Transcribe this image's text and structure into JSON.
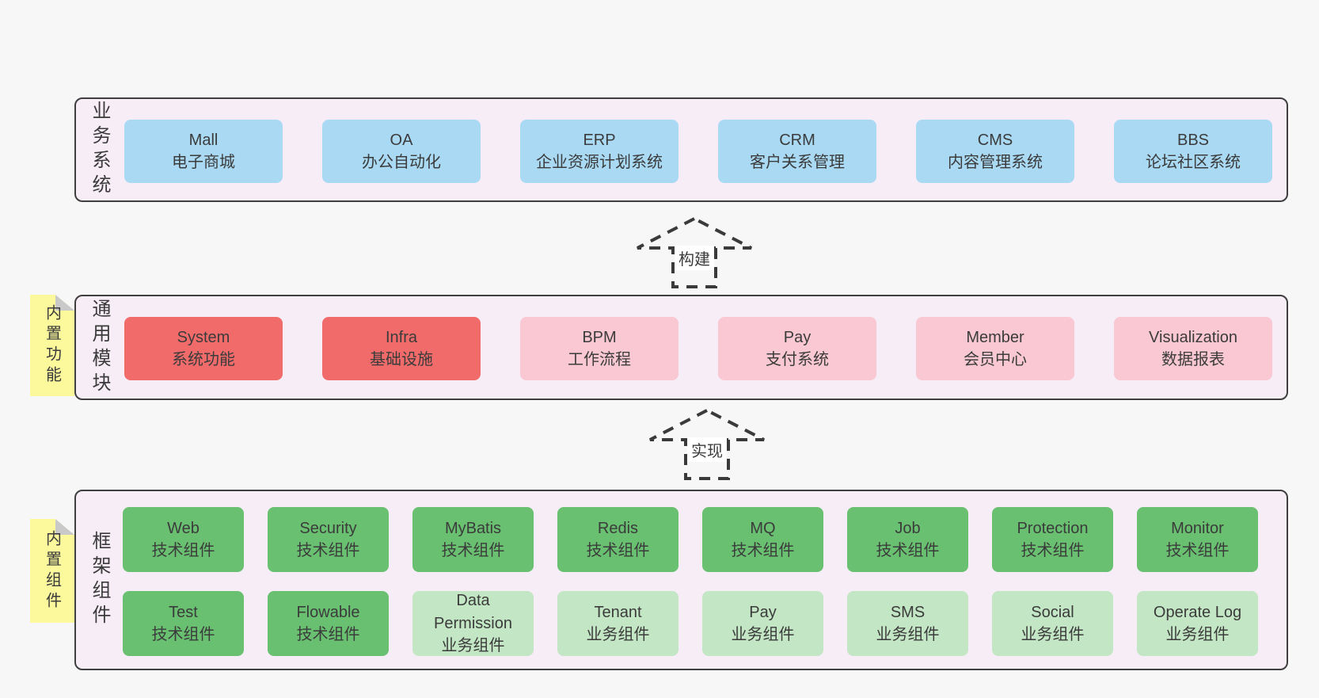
{
  "colors": {
    "background": "#f7f7f7",
    "panel_fill": "#f7edf6",
    "panel_border": "#3f3f3f",
    "blue": "#a9d9f3",
    "red": "#f16b6b",
    "pink": "#f9c8d2",
    "green": "#69c071",
    "light_green": "#c3e6c4",
    "sticky_yellow": "#fbf99c",
    "fold_gray": "#c9c9c9",
    "arrow_stroke": "#3a3a3a",
    "text": "#3b3b3b"
  },
  "layers": [
    {
      "label": "业务系统",
      "rows": [
        [
          {
            "name": "Mall",
            "desc": "电子商城",
            "type": "blue"
          },
          {
            "name": "OA",
            "desc": "办公自动化",
            "type": "blue"
          },
          {
            "name": "ERP",
            "desc": "企业资源计划系统",
            "type": "blue"
          },
          {
            "name": "CRM",
            "desc": "客户关系管理",
            "type": "blue"
          },
          {
            "name": "CMS",
            "desc": "内容管理系统",
            "type": "blue"
          },
          {
            "name": "BBS",
            "desc": "论坛社区系统",
            "type": "blue"
          }
        ]
      ]
    },
    {
      "label": "通用模块",
      "rows": [
        [
          {
            "name": "System",
            "desc": "系统功能",
            "type": "red"
          },
          {
            "name": "Infra",
            "desc": "基础设施",
            "type": "red"
          },
          {
            "name": "BPM",
            "desc": "工作流程",
            "type": "pink"
          },
          {
            "name": "Pay",
            "desc": "支付系统",
            "type": "pink"
          },
          {
            "name": "Member",
            "desc": "会员中心",
            "type": "pink"
          },
          {
            "name": "Visualization",
            "desc": "数据报表",
            "type": "pink"
          }
        ]
      ]
    },
    {
      "label": "框架组件",
      "rows": [
        [
          {
            "name": "Web",
            "desc": "技术组件",
            "type": "green"
          },
          {
            "name": "Security",
            "desc": "技术组件",
            "type": "green"
          },
          {
            "name": "MyBatis",
            "desc": "技术组件",
            "type": "green"
          },
          {
            "name": "Redis",
            "desc": "技术组件",
            "type": "green"
          },
          {
            "name": "MQ",
            "desc": "技术组件",
            "type": "green"
          },
          {
            "name": "Job",
            "desc": "技术组件",
            "type": "green"
          },
          {
            "name": "Protection",
            "desc": "技术组件",
            "type": "green"
          },
          {
            "name": "Monitor",
            "desc": "技术组件",
            "type": "green"
          }
        ],
        [
          {
            "name": "Test",
            "desc": "技术组件",
            "type": "green"
          },
          {
            "name": "Flowable",
            "desc": "技术组件",
            "type": "green"
          },
          {
            "name": "Data Permission",
            "desc": "业务组件",
            "type": "lightgreen"
          },
          {
            "name": "Tenant",
            "desc": "业务组件",
            "type": "lightgreen"
          },
          {
            "name": "Pay",
            "desc": "业务组件",
            "type": "lightgreen"
          },
          {
            "name": "SMS",
            "desc": "业务组件",
            "type": "lightgreen"
          },
          {
            "name": "Social",
            "desc": "业务组件",
            "type": "lightgreen"
          },
          {
            "name": "Operate Log",
            "desc": "业务组件",
            "type": "lightgreen"
          }
        ]
      ]
    }
  ],
  "stickies": [
    {
      "label": "内置功能"
    },
    {
      "label": "内置组件"
    }
  ],
  "arrows": [
    {
      "label": "构建"
    },
    {
      "label": "实现"
    }
  ]
}
